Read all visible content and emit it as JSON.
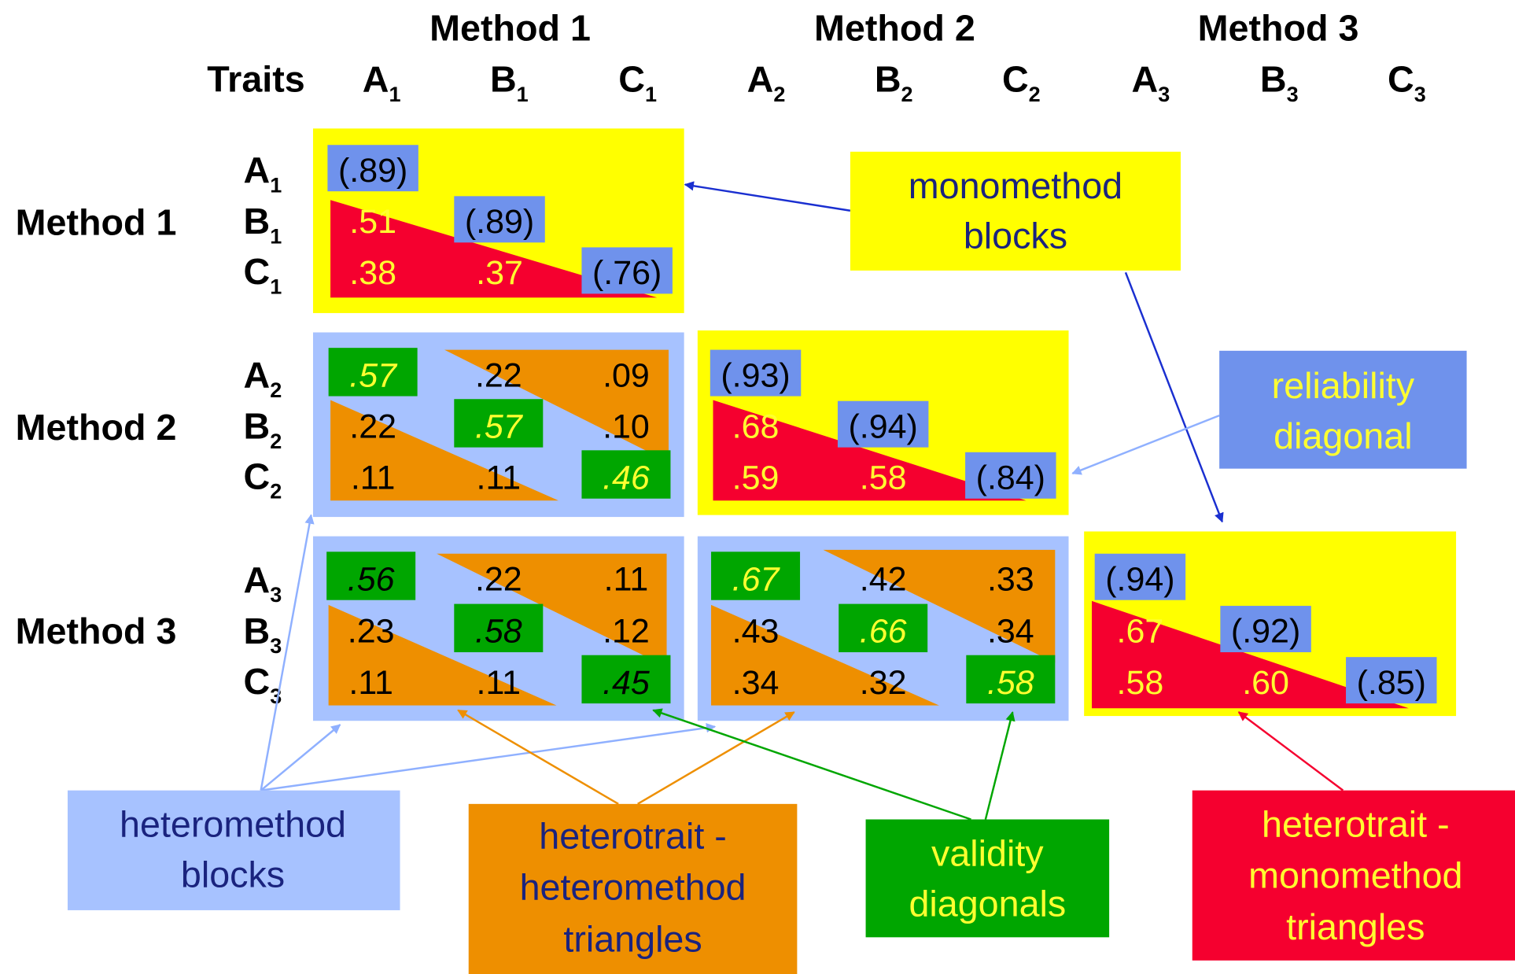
{
  "methods": [
    "Method 1",
    "Method 2",
    "Method 3"
  ],
  "traits_label": "Traits",
  "columns": [
    {
      "t": "A",
      "s": "1"
    },
    {
      "t": "B",
      "s": "1"
    },
    {
      "t": "C",
      "s": "1"
    },
    {
      "t": "A",
      "s": "2"
    },
    {
      "t": "B",
      "s": "2"
    },
    {
      "t": "C",
      "s": "2"
    },
    {
      "t": "A",
      "s": "3"
    },
    {
      "t": "B",
      "s": "3"
    },
    {
      "t": "C",
      "s": "3"
    }
  ],
  "rows": [
    {
      "t": "A",
      "s": "1"
    },
    {
      "t": "B",
      "s": "1"
    },
    {
      "t": "C",
      "s": "1"
    },
    {
      "t": "A",
      "s": "2"
    },
    {
      "t": "B",
      "s": "2"
    },
    {
      "t": "C",
      "s": "2"
    },
    {
      "t": "A",
      "s": "3"
    },
    {
      "t": "B",
      "s": "3"
    },
    {
      "t": "C",
      "s": "3"
    }
  ],
  "blocks": [
    {
      "id": "m1",
      "type": "monomethod",
      "reliability": [
        "(.89)",
        "(.89)",
        "(.76)"
      ],
      "values": [
        ".51",
        ".38",
        ".37"
      ]
    },
    {
      "id": "m2",
      "type": "monomethod",
      "reliability": [
        "(.93)",
        "(.94)",
        "(.84)"
      ],
      "values": [
        ".68",
        ".59",
        ".58"
      ]
    },
    {
      "id": "m3",
      "type": "monomethod",
      "reliability": [
        "(.94)",
        "(.92)",
        "(.85)"
      ],
      "values": [
        ".67",
        ".58",
        ".60"
      ]
    },
    {
      "id": "h21",
      "type": "heteromethod",
      "cells": [
        [
          ".57",
          ".22",
          ".09"
        ],
        [
          ".22",
          ".57",
          ".10"
        ],
        [
          ".11",
          ".11",
          ".46"
        ]
      ]
    },
    {
      "id": "h31",
      "type": "heteromethod",
      "cells": [
        [
          ".56",
          ".22",
          ".11"
        ],
        [
          ".23",
          ".58",
          ".12"
        ],
        [
          ".11",
          ".11",
          ".45"
        ]
      ]
    },
    {
      "id": "h32",
      "type": "heteromethod",
      "cells": [
        [
          ".67",
          ".42",
          ".33"
        ],
        [
          ".43",
          ".66",
          ".34"
        ],
        [
          ".34",
          ".32",
          ".58"
        ]
      ]
    }
  ],
  "legend": {
    "monomethod": [
      "monomethod",
      "blocks"
    ],
    "reliability": [
      "reliability",
      "diagonal"
    ],
    "heteromethod": [
      "heteromethod",
      "blocks"
    ],
    "hh_triangles": [
      "heterotrait -",
      "heteromethod",
      "triangles"
    ],
    "validity": [
      "validity",
      "diagonals"
    ],
    "hm_triangles": [
      "heterotrait -",
      "monomethod",
      "triangles"
    ]
  },
  "colors": {
    "yellow": "#ffff00",
    "red": "#f5002f",
    "orange": "#ee8f00",
    "light_blue": "#a7c2ff",
    "blue": "#6f92ec",
    "green": "#00a600",
    "navy": "#1a237e",
    "yellow_text": "#ffff30"
  }
}
